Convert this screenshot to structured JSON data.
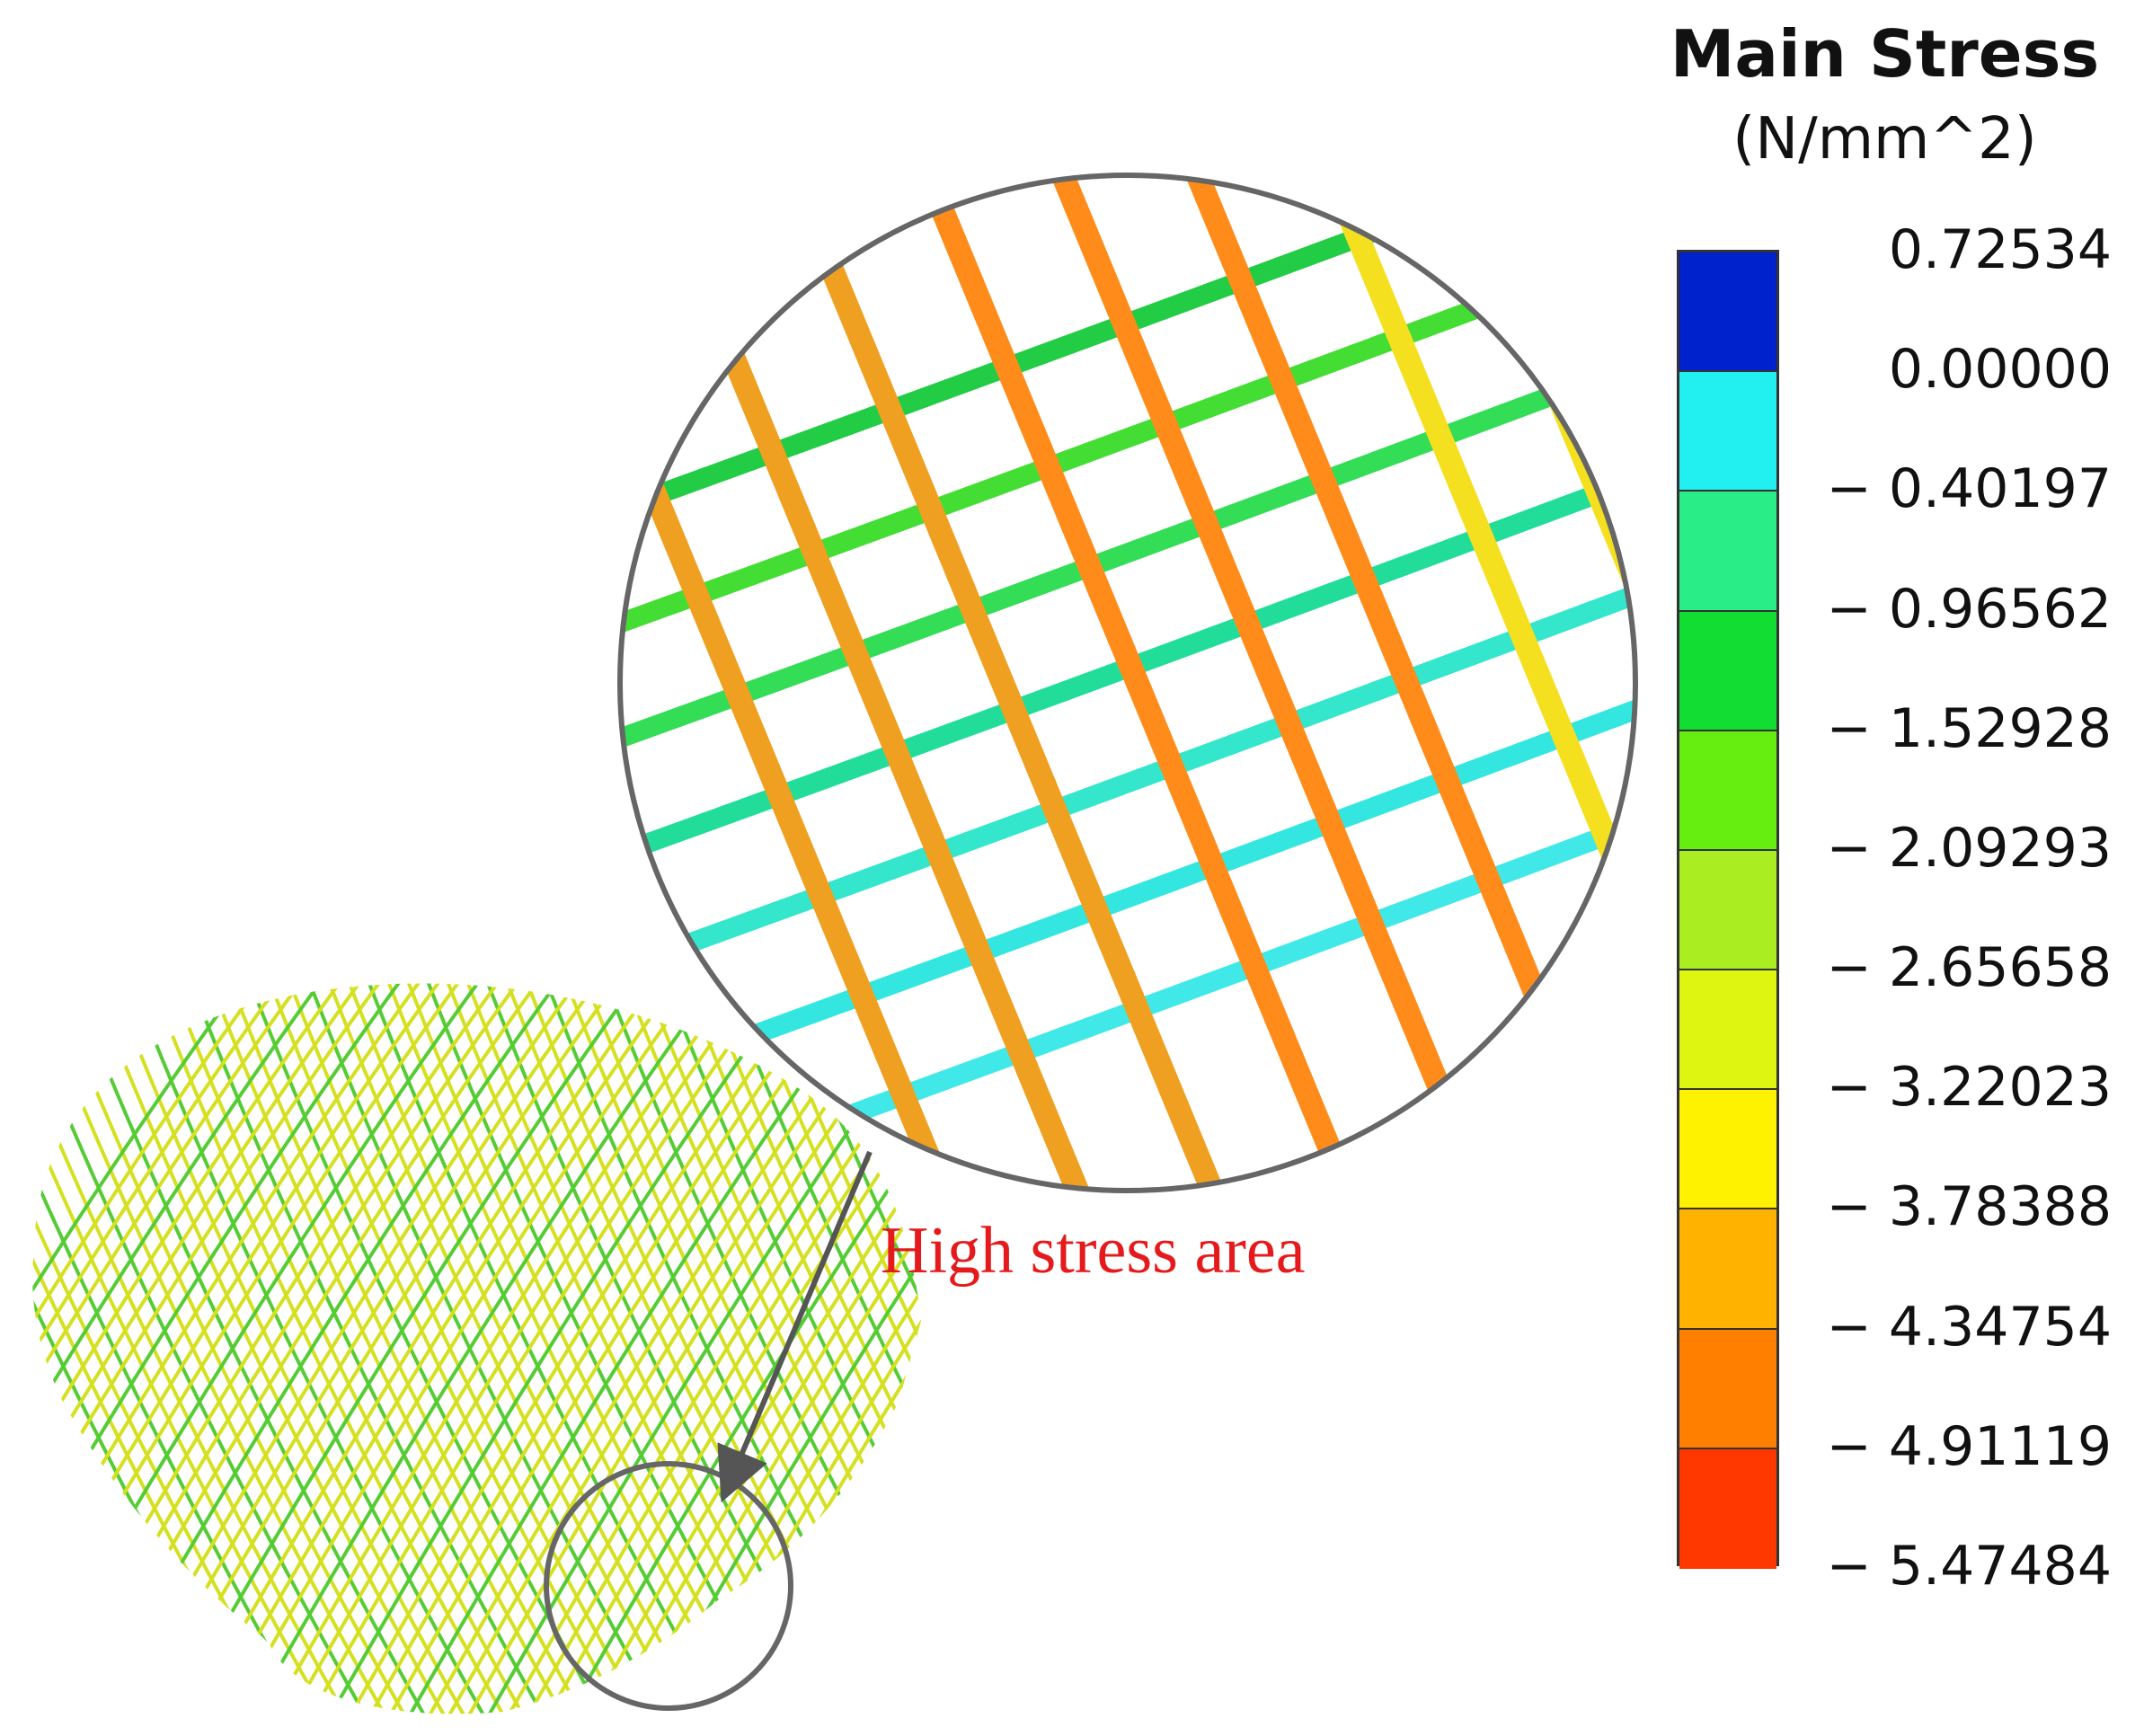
{
  "legend": {
    "title_line1": "Main Stress",
    "title_line2": "(N/mm^2)",
    "tick_labels": [
      "0.72534",
      "0.00000",
      "− 0.40197",
      "− 0.96562",
      "− 1.52928",
      "− 2.09293",
      "− 2.65658",
      "− 3.22023",
      "− 3.78388",
      "− 4.34754",
      "− 4.91119",
      "− 5.47484"
    ],
    "colors": [
      "#0022cc",
      "#22f0f0",
      "#29ee88",
      "#11dd33",
      "#66ee11",
      "#aaee22",
      "#ddf511",
      "#fff200",
      "#ffb300",
      "#ff7f00",
      "#ff3800"
    ]
  },
  "annotation": {
    "text": "High stress area",
    "color": "#e41a1c"
  },
  "model_colors": {
    "dome_warm": "#d4e020",
    "dome_cool": "#55cc33",
    "inset_vertical": "#f0a020",
    "inset_vertical_hot": "#ff8c1a",
    "inset_vertical_yellow": "#f5e020",
    "inset_horizontal": [
      "#22cc44",
      "#44dd33",
      "#33dd55",
      "#22dd99",
      "#33e6cc",
      "#33e6e0",
      "#40e8e8"
    ]
  }
}
